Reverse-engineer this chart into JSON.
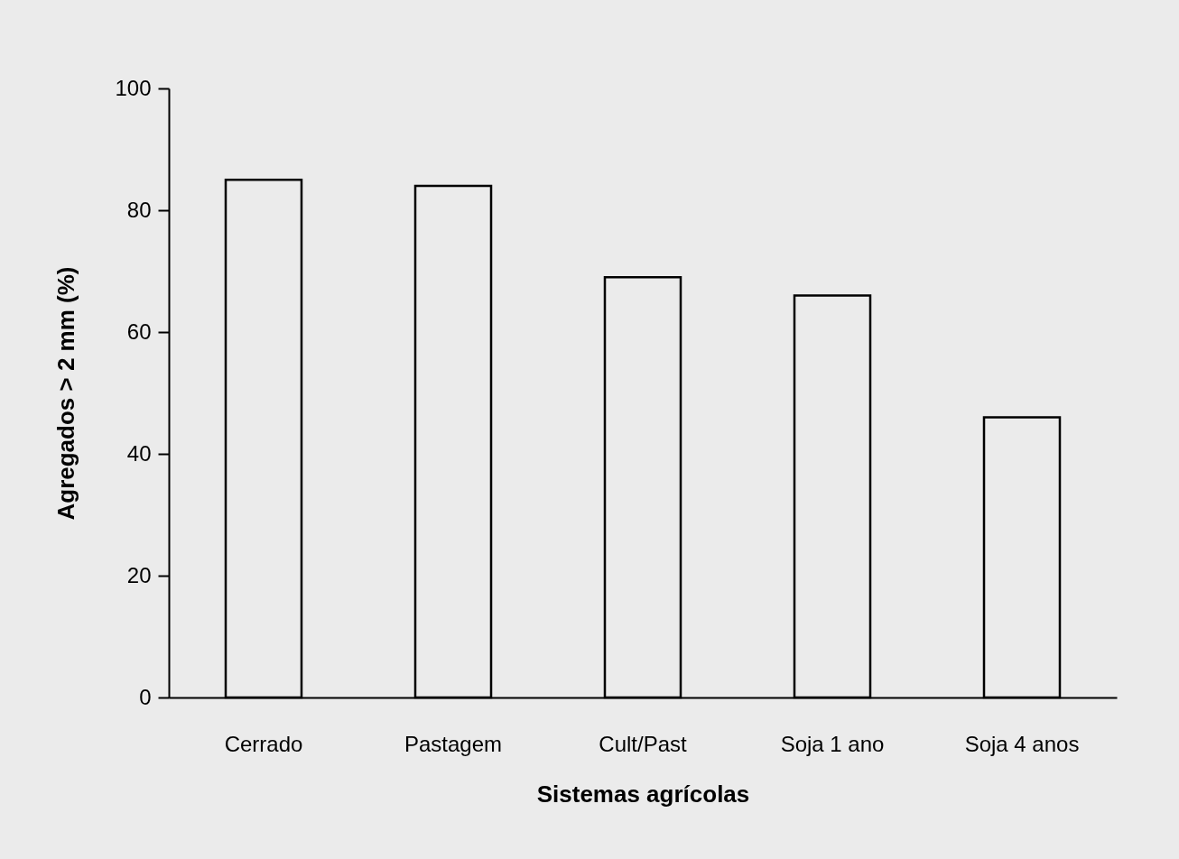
{
  "chart_data": {
    "type": "bar",
    "xlabel": "Sistemas agrícolas",
    "ylabel": "Agregados > 2 mm (%)",
    "categories": [
      "Cerrado",
      "Pastagem",
      "Cult/Past",
      "Soja 1 ano",
      "Soja 4 anos"
    ],
    "values": [
      85,
      84,
      69,
      66,
      46
    ],
    "color": "#ebebeb",
    "ylim": [
      0,
      100
    ],
    "yticks": [
      0,
      20,
      40,
      60,
      80,
      100
    ],
    "grid": false
  }
}
